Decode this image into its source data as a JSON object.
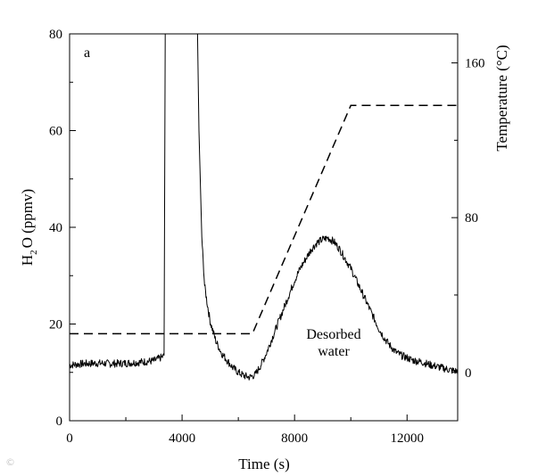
{
  "chart_data": {
    "type": "line",
    "panel_label": "a",
    "xlabel": "Time (s)",
    "ylabel": "H2O (ppmv)",
    "ylabel_parts": {
      "base": "H",
      "sub": "2",
      "rest": "O (ppmv)"
    },
    "ylabel_right": "Temperature (°C)",
    "xlim": [
      0,
      13800
    ],
    "ylim": [
      0,
      80
    ],
    "y2lim": [
      -25,
      175
    ],
    "x_ticks": [
      0,
      4000,
      8000,
      12000
    ],
    "x_minor_ticks": [
      2000,
      6000,
      10000
    ],
    "y_ticks": [
      0,
      20,
      40,
      60,
      80
    ],
    "y_minor_ticks": [
      10,
      30,
      50,
      70
    ],
    "y2_ticks": [
      0,
      80,
      160
    ],
    "y2_minor_ticks": [
      40,
      120
    ],
    "series": [
      {
        "name": "H2O",
        "style": "solid",
        "color": "#000000",
        "points": [
          [
            0,
            11.5
          ],
          [
            500,
            11.8
          ],
          [
            1000,
            11.9
          ],
          [
            1500,
            11.8
          ],
          [
            2000,
            11.9
          ],
          [
            2500,
            12.1
          ],
          [
            3000,
            12.4
          ],
          [
            3300,
            13.2
          ],
          [
            3360,
            13.5
          ],
          [
            3400,
            80
          ],
          [
            4550,
            80
          ],
          [
            4600,
            60
          ],
          [
            4700,
            38
          ],
          [
            4800,
            28
          ],
          [
            4900,
            24
          ],
          [
            5000,
            20.5
          ],
          [
            5200,
            16.5
          ],
          [
            5400,
            14
          ],
          [
            5600,
            12.5
          ],
          [
            5800,
            11
          ],
          [
            6000,
            10
          ],
          [
            6200,
            9.3
          ],
          [
            6400,
            9
          ],
          [
            6600,
            9.5
          ],
          [
            6800,
            11.5
          ],
          [
            7000,
            14
          ],
          [
            7200,
            17
          ],
          [
            7400,
            20
          ],
          [
            7600,
            23
          ],
          [
            7800,
            26
          ],
          [
            8000,
            29
          ],
          [
            8200,
            31.5
          ],
          [
            8400,
            33.5
          ],
          [
            8600,
            35.5
          ],
          [
            8800,
            36.8
          ],
          [
            9000,
            37.5
          ],
          [
            9200,
            37.8
          ],
          [
            9400,
            37
          ],
          [
            9600,
            35.5
          ],
          [
            9800,
            33.5
          ],
          [
            10000,
            31.5
          ],
          [
            10200,
            29
          ],
          [
            10400,
            26.5
          ],
          [
            10600,
            24
          ],
          [
            10800,
            21.5
          ],
          [
            11000,
            19
          ],
          [
            11200,
            17
          ],
          [
            11400,
            15.5
          ],
          [
            11600,
            14.2
          ],
          [
            11800,
            13.5
          ],
          [
            12000,
            13
          ],
          [
            12200,
            12.5
          ],
          [
            12400,
            12.3
          ],
          [
            12600,
            12
          ],
          [
            12800,
            11.6
          ],
          [
            13000,
            11.3
          ],
          [
            13200,
            11
          ],
          [
            13400,
            10.7
          ],
          [
            13600,
            10.4
          ],
          [
            13800,
            10.2
          ]
        ]
      },
      {
        "name": "Temperature",
        "style": "dashed",
        "color": "#000000",
        "axis": "right",
        "points": [
          [
            0,
            20
          ],
          [
            6500,
            20
          ],
          [
            10000,
            138
          ],
          [
            13800,
            138
          ]
        ]
      }
    ],
    "annotations": [
      {
        "text": "Desorbed",
        "x": 9000,
        "y": 17.5
      },
      {
        "text": "water",
        "x": 9000,
        "y": 14
      }
    ]
  }
}
